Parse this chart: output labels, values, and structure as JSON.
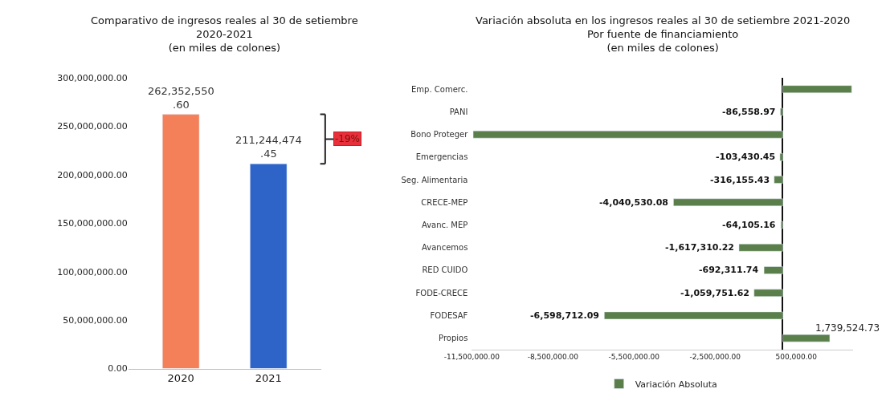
{
  "chart_data": [
    {
      "type": "bar",
      "title": "Comparativo de ingresos reales al 30 de setiembre\n2020-2021\n(en miles de colones)",
      "categories": [
        "2020",
        "2021"
      ],
      "values": [
        262352550.6,
        211244474.45
      ],
      "colors": [
        "#f4805a",
        "#2e64c8"
      ],
      "value_labels": [
        "262,352,550.60",
        "211,244,474.45"
      ],
      "ylim": [
        0,
        300000000
      ],
      "yticks": [
        {
          "value": 0,
          "label": "0.00"
        },
        {
          "value": 50000000,
          "label": "50,000,000.00"
        },
        {
          "value": 100000000,
          "label": "100,000,000.00"
        },
        {
          "value": 150000000,
          "label": "150,000,000.00"
        },
        {
          "value": 200000000,
          "label": "200,000,000.00"
        },
        {
          "value": 250000000,
          "label": "250,000,000.00"
        },
        {
          "value": 300000000,
          "label": "300,000,000.00"
        }
      ],
      "annotations": [
        "-19%"
      ]
    },
    {
      "type": "bar",
      "orientation": "horizontal",
      "title": "Variación absoluta en los ingresos reales al 30 de setiembre 2021-2020\nPor fuente de financiamiento\n(en miles de colones)",
      "categories": [
        "Emp. Comerc.",
        "PANI",
        "Bono Proteger",
        "Emergencias",
        "Seg. Alimentaria",
        "CRECE-MEP",
        "Avanc. MEP",
        "Avancemos",
        "RED CUIDO",
        "FODE-CRECE",
        "FODESAF",
        "Propios"
      ],
      "series": [
        {
          "name": "Variación Absoluta",
          "color": "#5a7f4a",
          "values": [
            2550000,
            -86558.97,
            -11450000,
            -103430.45,
            -316155.43,
            -4040530.08,
            -64105.16,
            -1617310.22,
            -692311.74,
            -1059751.62,
            -6598712.09,
            1739524.73
          ],
          "value_labels": [
            null,
            "-86,558.97",
            null,
            "-103,430.45",
            "-316,155.43",
            "-4,040,530.08",
            "-64,105.16",
            "-1,617,310.22",
            "-692,311.74",
            "-1,059,751.62",
            "-6,598,712.09",
            "1,739,524.73"
          ]
        }
      ],
      "xlim": [
        -11500000,
        2600000
      ],
      "xticks": [
        {
          "value": -11500000,
          "label": "-11,500,000.00"
        },
        {
          "value": -8500000,
          "label": "-8,500,000.00"
        },
        {
          "value": -5500000,
          "label": "-5,500,000.00"
        },
        {
          "value": -2500000,
          "label": "-2,500,000.00"
        },
        {
          "value": 500000,
          "label": "500,000.00"
        }
      ],
      "legend": "bottom"
    }
  ]
}
